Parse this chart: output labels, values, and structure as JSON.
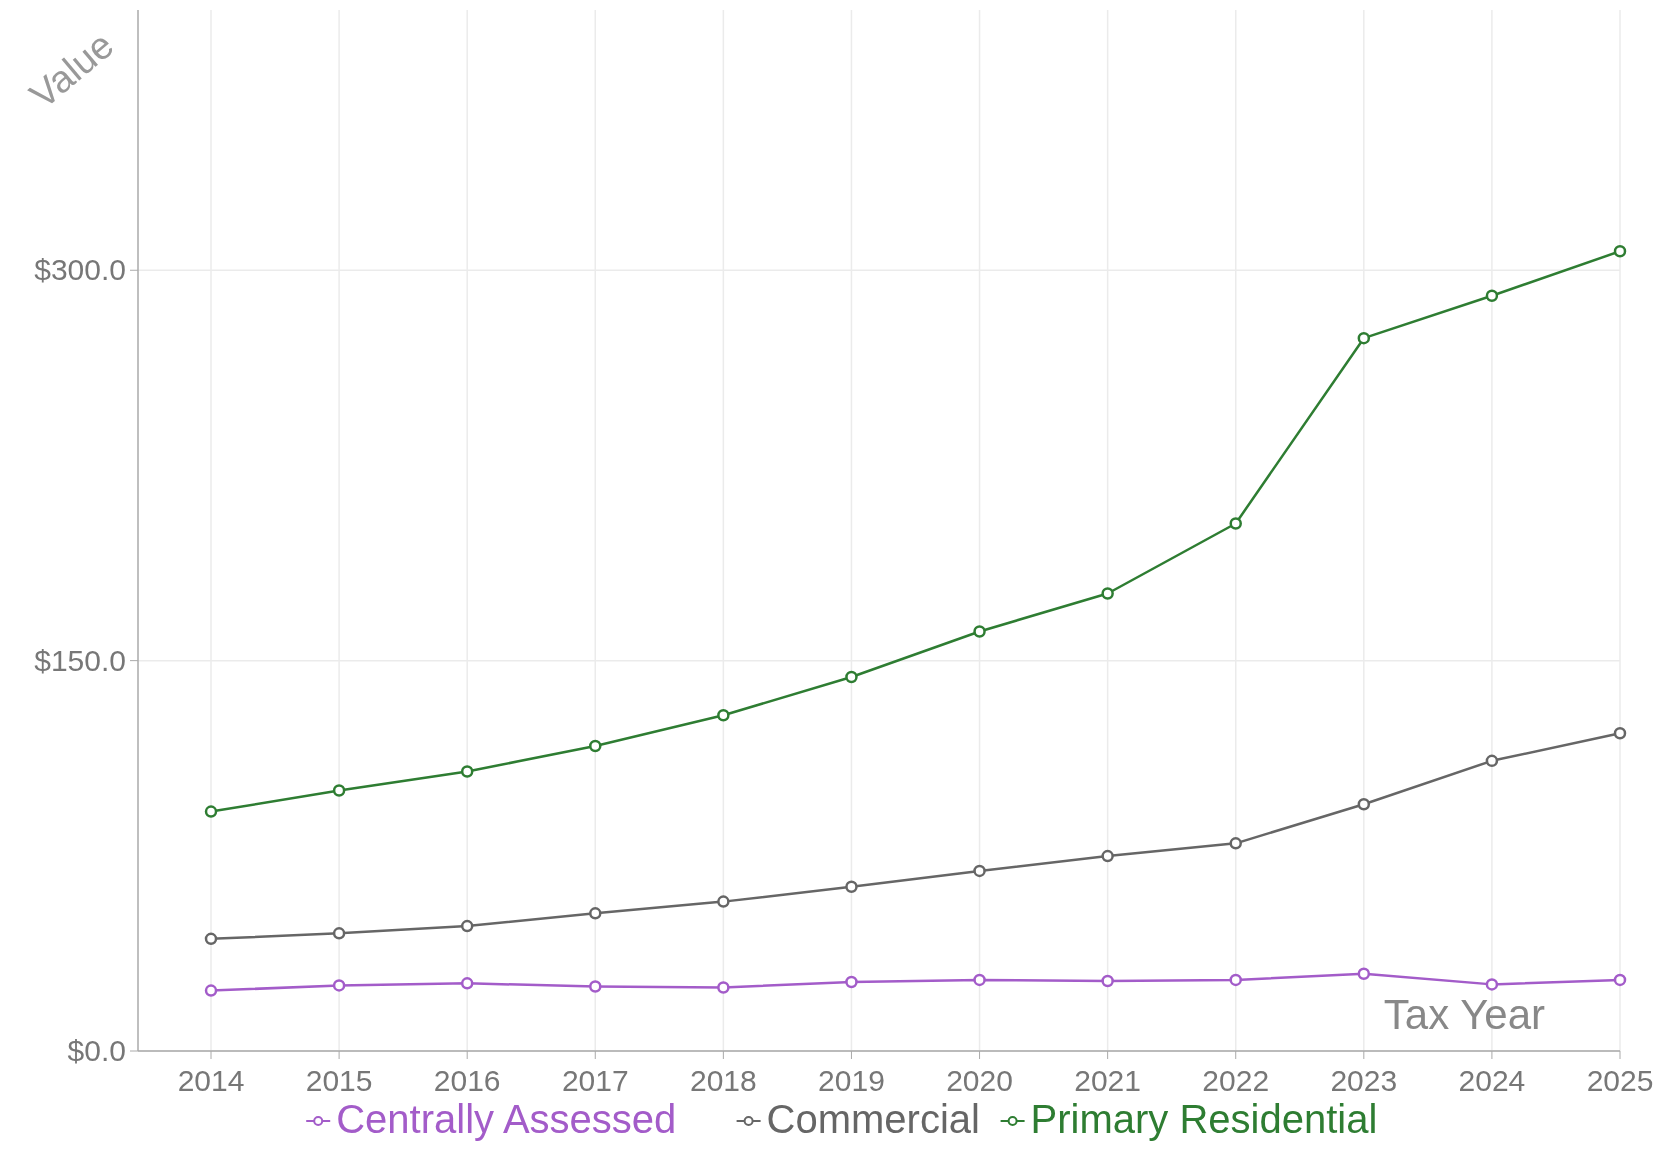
{
  "chart_data": {
    "type": "line",
    "xlabel": "Tax Year",
    "ylabel": "Value",
    "x": [
      2014,
      2015,
      2016,
      2017,
      2018,
      2019,
      2020,
      2021,
      2022,
      2023,
      2024,
      2025
    ],
    "series": [
      {
        "name": "Centrally Assessed",
        "color": "#a35cc9",
        "values": [
          23.2,
          25.2,
          26.0,
          24.8,
          24.4,
          26.5,
          27.3,
          26.9,
          27.3,
          29.7,
          25.6,
          27.3
        ]
      },
      {
        "name": "Commercial",
        "color": "#666666",
        "values": [
          43.1,
          45.2,
          48.0,
          52.9,
          57.4,
          63.1,
          69.2,
          74.9,
          79.8,
          94.8,
          111.5,
          122.1
        ]
      },
      {
        "name": "Primary Residential",
        "color": "#2e7d32",
        "values": [
          92.0,
          100.1,
          107.4,
          117.2,
          129.0,
          143.7,
          161.2,
          175.8,
          202.7,
          273.9,
          290.2,
          307.3
        ]
      }
    ],
    "xlim": [
      2013.43,
      2025
    ],
    "ylim": [
      0,
      400
    ],
    "xticks": [
      2014,
      2015,
      2016,
      2017,
      2018,
      2019,
      2020,
      2021,
      2022,
      2023,
      2024,
      2025
    ],
    "yticks": [
      {
        "value": 0,
        "label": "$0.0"
      },
      {
        "value": 150,
        "label": "$150.0"
      },
      {
        "value": 300,
        "label": "$300.0"
      }
    ],
    "grid": true,
    "legend": "bottom",
    "marker": "circle",
    "line_style": "solid"
  }
}
